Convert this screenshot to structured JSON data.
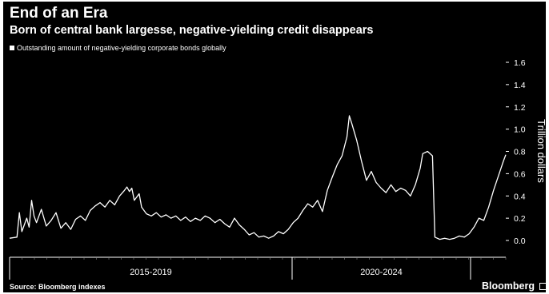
{
  "chart_data": {
    "type": "line",
    "title": "End of an Era",
    "subtitle": "Born of central bank largesse, negative-yielding credit disappears",
    "ylabel": "Trillion dollars",
    "ylim": [
      0,
      1.6
    ],
    "yticks": [
      "0.0",
      "0.2",
      "0.4",
      "0.6",
      "0.8",
      "1.0",
      "1.2",
      "1.4",
      "1.6"
    ],
    "xlim": [
      2014.6,
      2024.75
    ],
    "x_categories": [
      "2015-2019",
      "2020-2024"
    ],
    "grid": false,
    "legend_position": "top-left",
    "line_color": "#ffffff",
    "series": [
      {
        "name": "Outstanding amount of negative-yielding corporate bonds globally",
        "points": [
          [
            2014.6,
            0.02
          ],
          [
            2014.75,
            0.03
          ],
          [
            2014.8,
            0.25
          ],
          [
            2014.85,
            0.08
          ],
          [
            2014.95,
            0.2
          ],
          [
            2015.0,
            0.12
          ],
          [
            2015.05,
            0.36
          ],
          [
            2015.1,
            0.22
          ],
          [
            2015.15,
            0.16
          ],
          [
            2015.25,
            0.28
          ],
          [
            2015.35,
            0.13
          ],
          [
            2015.45,
            0.18
          ],
          [
            2015.55,
            0.25
          ],
          [
            2015.65,
            0.11
          ],
          [
            2015.75,
            0.16
          ],
          [
            2015.85,
            0.1
          ],
          [
            2015.95,
            0.19
          ],
          [
            2016.05,
            0.22
          ],
          [
            2016.15,
            0.18
          ],
          [
            2016.25,
            0.27
          ],
          [
            2016.35,
            0.31
          ],
          [
            2016.45,
            0.34
          ],
          [
            2016.55,
            0.3
          ],
          [
            2016.65,
            0.36
          ],
          [
            2016.75,
            0.32
          ],
          [
            2016.85,
            0.4
          ],
          [
            2016.95,
            0.45
          ],
          [
            2017.0,
            0.48
          ],
          [
            2017.05,
            0.44
          ],
          [
            2017.1,
            0.47
          ],
          [
            2017.15,
            0.36
          ],
          [
            2017.25,
            0.42
          ],
          [
            2017.3,
            0.3
          ],
          [
            2017.4,
            0.24
          ],
          [
            2017.5,
            0.22
          ],
          [
            2017.6,
            0.25
          ],
          [
            2017.7,
            0.21
          ],
          [
            2017.8,
            0.23
          ],
          [
            2017.9,
            0.2
          ],
          [
            2018.0,
            0.22
          ],
          [
            2018.1,
            0.18
          ],
          [
            2018.2,
            0.21
          ],
          [
            2018.3,
            0.17
          ],
          [
            2018.4,
            0.2
          ],
          [
            2018.5,
            0.18
          ],
          [
            2018.6,
            0.22
          ],
          [
            2018.7,
            0.2
          ],
          [
            2018.8,
            0.16
          ],
          [
            2018.9,
            0.19
          ],
          [
            2019.0,
            0.15
          ],
          [
            2019.1,
            0.12
          ],
          [
            2019.2,
            0.2
          ],
          [
            2019.3,
            0.14
          ],
          [
            2019.4,
            0.1
          ],
          [
            2019.5,
            0.05
          ],
          [
            2019.6,
            0.07
          ],
          [
            2019.7,
            0.03
          ],
          [
            2019.8,
            0.04
          ],
          [
            2019.9,
            0.02
          ],
          [
            2020.0,
            0.04
          ],
          [
            2020.1,
            0.08
          ],
          [
            2020.2,
            0.06
          ],
          [
            2020.3,
            0.1
          ],
          [
            2020.4,
            0.16
          ],
          [
            2020.5,
            0.2
          ],
          [
            2020.6,
            0.27
          ],
          [
            2020.7,
            0.33
          ],
          [
            2020.8,
            0.3
          ],
          [
            2020.9,
            0.36
          ],
          [
            2021.0,
            0.26
          ],
          [
            2021.1,
            0.45
          ],
          [
            2021.2,
            0.57
          ],
          [
            2021.3,
            0.68
          ],
          [
            2021.4,
            0.76
          ],
          [
            2021.5,
            0.93
          ],
          [
            2021.55,
            1.12
          ],
          [
            2021.6,
            1.05
          ],
          [
            2021.7,
            0.9
          ],
          [
            2021.8,
            0.71
          ],
          [
            2021.9,
            0.54
          ],
          [
            2022.0,
            0.62
          ],
          [
            2022.1,
            0.52
          ],
          [
            2022.2,
            0.47
          ],
          [
            2022.3,
            0.43
          ],
          [
            2022.4,
            0.5
          ],
          [
            2022.5,
            0.44
          ],
          [
            2022.6,
            0.47
          ],
          [
            2022.7,
            0.45
          ],
          [
            2022.8,
            0.4
          ],
          [
            2022.9,
            0.5
          ],
          [
            2023.0,
            0.65
          ],
          [
            2023.05,
            0.78
          ],
          [
            2023.15,
            0.8
          ],
          [
            2023.25,
            0.76
          ],
          [
            2023.3,
            0.03
          ],
          [
            2023.4,
            0.01
          ],
          [
            2023.5,
            0.02
          ],
          [
            2023.6,
            0.01
          ],
          [
            2023.7,
            0.02
          ],
          [
            2023.8,
            0.04
          ],
          [
            2023.9,
            0.03
          ],
          [
            2024.0,
            0.06
          ],
          [
            2024.1,
            0.12
          ],
          [
            2024.2,
            0.2
          ],
          [
            2024.3,
            0.18
          ],
          [
            2024.4,
            0.3
          ],
          [
            2024.5,
            0.45
          ],
          [
            2024.6,
            0.58
          ],
          [
            2024.7,
            0.71
          ],
          [
            2024.75,
            0.77
          ]
        ]
      }
    ]
  },
  "page": {
    "title": "End of an Era",
    "subtitle": "Born of central bank largesse, negative-yielding credit disappears",
    "legend": "Outstanding amount of negative-yielding corporate bonds globally",
    "source": "Source: Bloomberg indexes",
    "brand": "Bloomberg"
  }
}
